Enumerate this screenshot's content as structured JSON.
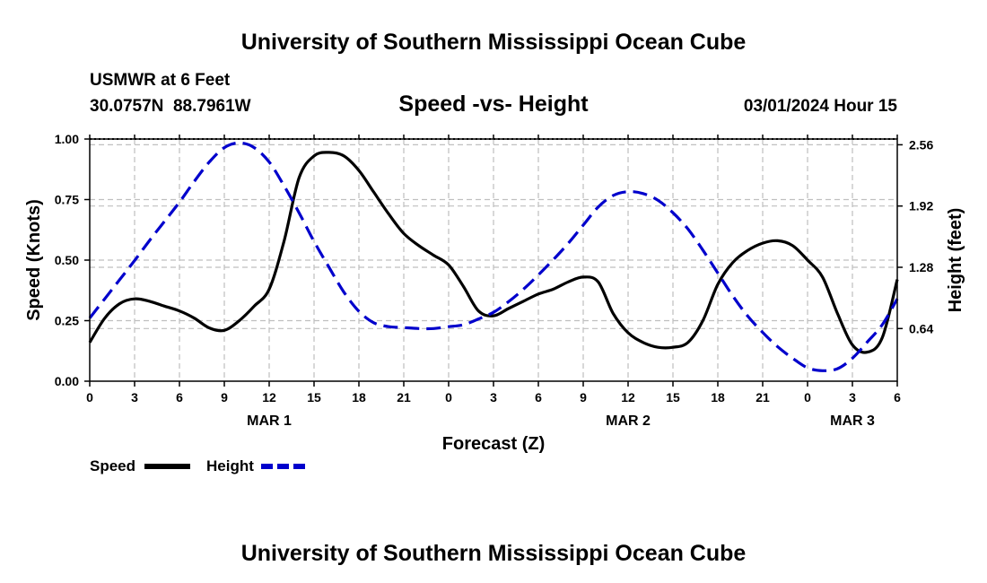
{
  "page": {
    "header_title": "University of Southern Mississippi Ocean Cube",
    "footer_title": "University of Southern Mississippi Ocean Cube",
    "station_line": "USMWR at 6 Feet",
    "coords": "30.0757N  88.7961W",
    "datetime": "03/01/2024 Hour 15"
  },
  "colors": {
    "speed": "#000000",
    "height": "#0000cc",
    "grid": "#bfbfbf"
  },
  "chart_data": {
    "type": "line",
    "title": "Speed -vs- Height",
    "xlabel": "Forecast (Z)",
    "ylabel": "Speed (Knots)",
    "y2label": "Height (feet)",
    "xlim": [
      0,
      54
    ],
    "ylim": [
      0,
      1
    ],
    "y2lim": [
      0.09,
      2.62
    ],
    "x_ticks": [
      0,
      3,
      6,
      9,
      12,
      15,
      18,
      21,
      24,
      27,
      30,
      33,
      36,
      39,
      42,
      45,
      48,
      51,
      54
    ],
    "x_tick_labels": [
      "0",
      "3",
      "6",
      "9",
      "12",
      "15",
      "18",
      "21",
      "0",
      "3",
      "6",
      "9",
      "12",
      "15",
      "18",
      "21",
      "0",
      "3",
      "6"
    ],
    "day_labels": [
      {
        "x": 12,
        "label": "MAR 1"
      },
      {
        "x": 36,
        "label": "MAR 2"
      },
      {
        "x": 51,
        "label": "MAR 3"
      }
    ],
    "y_ticks": [
      0,
      0.25,
      0.5,
      0.75,
      1.0
    ],
    "y_tick_labels": [
      "0.00",
      "0.25",
      "0.50",
      "0.75",
      "1.00"
    ],
    "y2_ticks": [
      0.64,
      1.28,
      1.92,
      2.56
    ],
    "y2_tick_labels": [
      "0.64",
      "1.28",
      "1.92",
      "2.56"
    ],
    "series": [
      {
        "name": "Speed",
        "axis": "left",
        "style": "solid",
        "x": [
          0,
          1,
          2,
          3,
          4,
          5,
          6,
          7,
          8,
          9,
          10,
          11,
          12,
          13,
          14,
          15,
          16,
          17,
          18,
          19,
          20,
          21,
          22,
          23,
          24,
          25,
          26,
          27,
          28,
          29,
          30,
          31,
          32,
          33,
          34,
          35,
          36,
          37,
          38,
          39,
          40,
          41,
          42,
          43,
          44,
          45,
          46,
          47,
          48,
          49,
          50,
          51,
          52,
          53,
          54
        ],
        "values": [
          0.16,
          0.26,
          0.32,
          0.34,
          0.33,
          0.31,
          0.29,
          0.26,
          0.22,
          0.21,
          0.25,
          0.31,
          0.38,
          0.58,
          0.84,
          0.93,
          0.945,
          0.93,
          0.87,
          0.78,
          0.69,
          0.61,
          0.56,
          0.52,
          0.48,
          0.39,
          0.29,
          0.27,
          0.3,
          0.33,
          0.36,
          0.38,
          0.41,
          0.43,
          0.41,
          0.28,
          0.2,
          0.16,
          0.14,
          0.14,
          0.16,
          0.25,
          0.4,
          0.49,
          0.54,
          0.57,
          0.58,
          0.56,
          0.5,
          0.43,
          0.28,
          0.15,
          0.12,
          0.18,
          0.42
        ]
      },
      {
        "name": "Height",
        "axis": "right",
        "style": "dashed",
        "x": [
          0,
          1,
          2,
          3,
          4,
          5,
          6,
          7,
          8,
          9,
          10,
          11,
          12,
          13,
          14,
          15,
          16,
          17,
          18,
          19,
          20,
          21,
          22,
          23,
          24,
          25,
          26,
          27,
          28,
          29,
          30,
          31,
          32,
          33,
          34,
          35,
          36,
          37,
          38,
          39,
          40,
          41,
          42,
          43,
          44,
          45,
          46,
          47,
          48,
          49,
          50,
          51,
          52,
          53,
          54
        ],
        "values": [
          0.75,
          0.95,
          1.15,
          1.35,
          1.56,
          1.76,
          1.96,
          2.18,
          2.38,
          2.53,
          2.58,
          2.53,
          2.38,
          2.13,
          1.85,
          1.55,
          1.28,
          1.02,
          0.82,
          0.7,
          0.66,
          0.65,
          0.64,
          0.64,
          0.66,
          0.68,
          0.74,
          0.81,
          0.92,
          1.05,
          1.2,
          1.36,
          1.53,
          1.72,
          1.91,
          2.03,
          2.07,
          2.05,
          1.98,
          1.85,
          1.68,
          1.46,
          1.22,
          0.98,
          0.77,
          0.6,
          0.45,
          0.33,
          0.23,
          0.2,
          0.22,
          0.33,
          0.5,
          0.68,
          0.95
        ]
      }
    ],
    "legend": [
      {
        "label": "Speed",
        "style": "solid"
      },
      {
        "label": "Height",
        "style": "dashed"
      }
    ]
  }
}
